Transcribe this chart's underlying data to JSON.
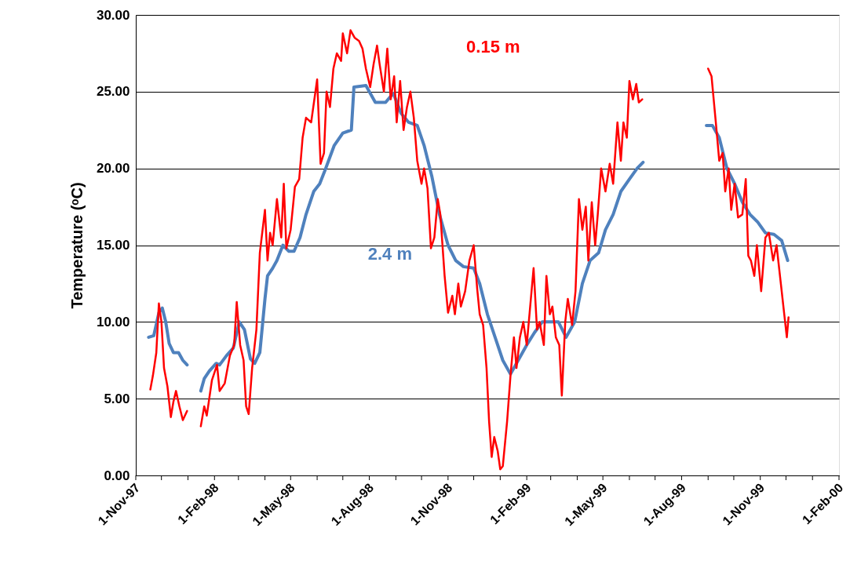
{
  "chart_data": {
    "type": "line",
    "ylabel": "Temperature (ᵒC)",
    "xlim": [
      "1997-11-01",
      "2000-02-01"
    ],
    "xticks": [
      {
        "value": "1997-11-01",
        "label": "1-Nov-97"
      },
      {
        "value": "1997-12-01",
        "label": null
      },
      {
        "value": "1998-01-01",
        "label": null
      },
      {
        "value": "1998-02-01",
        "label": "1-Feb-98"
      },
      {
        "value": "1998-03-01",
        "label": null
      },
      {
        "value": "1998-04-01",
        "label": null
      },
      {
        "value": "1998-05-01",
        "label": "1-May-98"
      },
      {
        "value": "1998-06-01",
        "label": null
      },
      {
        "value": "1998-07-01",
        "label": null
      },
      {
        "value": "1998-08-01",
        "label": "1-Aug-98"
      },
      {
        "value": "1998-09-01",
        "label": null
      },
      {
        "value": "1998-10-01",
        "label": null
      },
      {
        "value": "1998-11-01",
        "label": "1-Nov-98"
      },
      {
        "value": "1998-12-01",
        "label": null
      },
      {
        "value": "1999-01-01",
        "label": null
      },
      {
        "value": "1999-02-01",
        "label": "1-Feb-99"
      },
      {
        "value": "1999-03-01",
        "label": null
      },
      {
        "value": "1999-04-01",
        "label": null
      },
      {
        "value": "1999-05-01",
        "label": "1-May-99"
      },
      {
        "value": "1999-06-01",
        "label": null
      },
      {
        "value": "1999-07-01",
        "label": null
      },
      {
        "value": "1999-08-01",
        "label": "1-Aug-99"
      },
      {
        "value": "1999-09-01",
        "label": null
      },
      {
        "value": "1999-10-01",
        "label": null
      },
      {
        "value": "1999-11-01",
        "label": "1-Nov-99"
      },
      {
        "value": "1999-12-01",
        "label": null
      },
      {
        "value": "2000-01-01",
        "label": null
      },
      {
        "value": "2000-02-01",
        "label": "1-Feb-00"
      }
    ],
    "ylim": [
      0,
      30
    ],
    "yticks": [
      {
        "value": 0,
        "label": "0.00"
      },
      {
        "value": 5,
        "label": "5.00"
      },
      {
        "value": 10,
        "label": "10.00"
      },
      {
        "value": 15,
        "label": "15.00"
      },
      {
        "value": 20,
        "label": "20.00"
      },
      {
        "value": 25,
        "label": "25.00"
      },
      {
        "value": 30,
        "label": "30.00"
      }
    ],
    "grid": "y",
    "legend": false,
    "series": [
      {
        "name": "2.4 m",
        "color": "#4f81bd",
        "x": [
          "1997-11-16",
          "1997-11-22",
          "1997-11-28",
          "1997-12-02",
          "1997-12-06",
          "1997-12-10",
          "1997-12-15",
          "1997-12-21",
          "1997-12-26",
          "1997-12-31",
          "1998-01-08",
          "1998-01-16",
          "1998-01-20",
          "1998-01-26",
          "1998-02-03",
          "1998-02-07",
          "1998-02-15",
          "1998-02-23",
          "1998-03-02",
          "1998-03-08",
          "1998-03-15",
          "1998-03-20",
          "1998-03-26",
          "1998-04-01",
          "1998-04-04",
          "1998-04-10",
          "1998-04-15",
          "1998-04-22",
          "1998-04-29",
          "1998-05-05",
          "1998-05-12",
          "1998-05-19",
          "1998-05-28",
          "1998-06-04",
          "1998-06-11",
          "1998-06-21",
          "1998-07-01",
          "1998-07-11",
          "1998-07-14",
          "1998-07-28",
          "1998-08-08",
          "1998-08-20",
          "1998-08-29",
          "1998-09-07",
          "1998-09-16",
          "1998-09-26",
          "1998-10-04",
          "1998-10-13",
          "1998-10-22",
          "1998-11-01",
          "1998-11-10",
          "1998-11-19",
          "1998-12-01",
          "1998-12-08",
          "1998-12-17",
          "1998-12-26",
          "1999-01-04",
          "1999-01-13",
          "1999-01-22",
          "1999-02-01",
          "1999-02-10",
          "1999-02-19",
          "1999-03-01",
          "1999-03-10",
          "1999-03-19",
          "1999-03-29",
          "1999-04-07",
          "1999-04-16",
          "1999-04-26",
          "1999-05-04",
          "1999-05-13",
          "1999-05-22",
          "1999-06-01",
          "1999-06-10",
          "1999-06-17",
          "1999-07-25",
          "1999-08-30",
          "1999-09-06",
          "1999-09-14",
          "1999-09-23",
          "1999-10-02",
          "1999-10-11",
          "1999-10-20",
          "1999-10-29",
          "1999-11-07",
          "1999-11-17",
          "1999-11-26",
          "1999-12-03"
        ],
        "values": [
          9.0,
          9.1,
          10.6,
          10.9,
          10.0,
          8.6,
          8.0,
          8.0,
          7.5,
          7.2,
          null,
          5.5,
          6.3,
          6.8,
          7.3,
          7.2,
          7.8,
          8.3,
          10.0,
          9.5,
          7.6,
          7.3,
          8.0,
          11.5,
          13.0,
          13.5,
          14.0,
          15.0,
          14.6,
          14.6,
          15.5,
          17.0,
          18.5,
          19.0,
          20.0,
          21.5,
          22.3,
          22.5,
          25.3,
          25.4,
          24.3,
          24.3,
          24.9,
          23.6,
          23.0,
          22.8,
          21.5,
          19.5,
          17.0,
          15.0,
          14.0,
          13.6,
          13.5,
          12.5,
          10.5,
          9.0,
          7.5,
          6.6,
          7.5,
          8.5,
          9.3,
          10.0,
          10.0,
          10.0,
          9.0,
          10.0,
          12.5,
          14.0,
          14.5,
          16.0,
          17.0,
          18.5,
          19.3,
          20.0,
          20.4,
          null,
          22.8,
          22.8,
          22.0,
          20.0,
          19.0,
          17.8,
          17.0,
          16.5,
          15.8,
          15.7,
          15.3,
          14.0
        ]
      },
      {
        "name": "0.15 m",
        "color": "#ff0000",
        "x": [
          "1997-11-18",
          "1997-11-21",
          "1997-11-25",
          "1997-11-28",
          "1997-12-01",
          "1997-12-04",
          "1997-12-08",
          "1997-12-12",
          "1997-12-15",
          "1997-12-18",
          "1997-12-22",
          "1997-12-26",
          "1997-12-31",
          "1998-01-08",
          "1998-01-16",
          "1998-01-20",
          "1998-01-23",
          "1998-01-29",
          "1998-02-04",
          "1998-02-07",
          "1998-02-13",
          "1998-02-19",
          "1998-02-24",
          "1998-02-27",
          "1998-03-03",
          "1998-03-07",
          "1998-03-10",
          "1998-03-13",
          "1998-03-17",
          "1998-03-22",
          "1998-03-26",
          "1998-04-01",
          "1998-04-04",
          "1998-04-07",
          "1998-04-10",
          "1998-04-15",
          "1998-04-20",
          "1998-04-23",
          "1998-04-26",
          "1998-05-01",
          "1998-05-06",
          "1998-05-11",
          "1998-05-15",
          "1998-05-19",
          "1998-05-25",
          "1998-06-01",
          "1998-06-05",
          "1998-06-09",
          "1998-06-12",
          "1998-06-16",
          "1998-06-20",
          "1998-06-24",
          "1998-06-29",
          "1998-07-01",
          "1998-07-06",
          "1998-07-10",
          "1998-07-15",
          "1998-07-20",
          "1998-07-24",
          "1998-07-28",
          "1998-08-02",
          "1998-08-06",
          "1998-08-10",
          "1998-08-13",
          "1998-08-18",
          "1998-08-22",
          "1998-08-26",
          "1998-08-30",
          "1998-09-02",
          "1998-09-06",
          "1998-09-10",
          "1998-09-14",
          "1998-09-18",
          "1998-09-22",
          "1998-09-26",
          "1998-10-01",
          "1998-10-04",
          "1998-10-08",
          "1998-10-12",
          "1998-10-16",
          "1998-10-20",
          "1998-10-23",
          "1998-10-28",
          "1998-11-01",
          "1998-11-06",
          "1998-11-09",
          "1998-11-13",
          "1998-11-16",
          "1998-11-21",
          "1998-11-26",
          "1998-12-01",
          "1998-12-05",
          "1998-12-08",
          "1998-12-12",
          "1998-12-16",
          "1998-12-19",
          "1998-12-22",
          "1998-12-25",
          "1998-12-29",
          "1999-01-01",
          "1999-01-04",
          "1999-01-09",
          "1999-01-13",
          "1999-01-17",
          "1999-01-20",
          "1999-01-24",
          "1999-01-28",
          "1999-02-01",
          "1999-02-05",
          "1999-02-09",
          "1999-02-13",
          "1999-02-16",
          "1999-02-21",
          "1999-02-24",
          "1999-02-28",
          "1999-03-03",
          "1999-03-07",
          "1999-03-11",
          "1999-03-14",
          "1999-03-18",
          "1999-03-21",
          "1999-03-26",
          "1999-03-30",
          "1999-04-03",
          "1999-04-07",
          "1999-04-11",
          "1999-04-14",
          "1999-04-18",
          "1999-04-22",
          "1999-04-25",
          "1999-04-29",
          "1999-05-04",
          "1999-05-09",
          "1999-05-13",
          "1999-05-18",
          "1999-05-22",
          "1999-05-25",
          "1999-05-29",
          "1999-06-01",
          "1999-06-05",
          "1999-06-09",
          "1999-06-12",
          "1999-06-16",
          "1999-07-25",
          "1999-09-01",
          "1999-09-05",
          "1999-09-10",
          "1999-09-14",
          "1999-09-18",
          "1999-09-21",
          "1999-09-25",
          "1999-09-28",
          "1999-10-02",
          "1999-10-06",
          "1999-10-11",
          "1999-10-15",
          "1999-10-18",
          "1999-10-21",
          "1999-10-25",
          "1999-10-28",
          "1999-11-02",
          "1999-11-07",
          "1999-11-11",
          "1999-11-16",
          "1999-11-20",
          "1999-11-25",
          "1999-11-29",
          "1999-12-02",
          "1999-12-04"
        ],
        "values": [
          5.6,
          6.5,
          8.0,
          11.2,
          10.0,
          7.0,
          5.8,
          3.8,
          4.8,
          5.5,
          4.5,
          3.6,
          4.2,
          null,
          3.2,
          4.5,
          3.9,
          6.2,
          7.2,
          5.5,
          6.0,
          7.8,
          8.5,
          11.3,
          8.5,
          7.5,
          4.5,
          4.0,
          7.0,
          9.5,
          14.5,
          17.3,
          14.0,
          15.8,
          15.0,
          18.0,
          15.5,
          19.0,
          14.8,
          16.0,
          18.8,
          19.3,
          22.0,
          23.3,
          23.0,
          25.8,
          20.3,
          21.0,
          25.0,
          24.0,
          26.5,
          27.5,
          27.0,
          28.8,
          27.5,
          29.0,
          28.5,
          28.3,
          27.8,
          26.5,
          25.3,
          26.8,
          28.0,
          26.8,
          25.0,
          27.8,
          24.5,
          26.0,
          23.0,
          25.7,
          22.5,
          24.0,
          25.0,
          23.3,
          20.5,
          19.0,
          20.0,
          18.7,
          14.8,
          15.5,
          18.0,
          17.0,
          13.0,
          10.6,
          11.7,
          10.5,
          12.5,
          11.0,
          12.0,
          14.0,
          15.0,
          12.2,
          10.5,
          9.8,
          7.0,
          3.5,
          1.2,
          2.5,
          1.6,
          0.4,
          0.6,
          3.5,
          6.5,
          9.0,
          7.0,
          9.0,
          10.0,
          8.5,
          11.0,
          13.5,
          9.5,
          10.0,
          8.5,
          13.0,
          10.5,
          11.0,
          9.0,
          8.5,
          5.2,
          10.0,
          11.5,
          9.8,
          12.0,
          18.0,
          16.0,
          17.5,
          14.0,
          17.8,
          15.0,
          17.0,
          20.0,
          18.5,
          20.3,
          19.0,
          23.0,
          20.5,
          23.0,
          22.0,
          25.7,
          24.5,
          25.5,
          24.3,
          24.5,
          null,
          26.5,
          26.0,
          23.0,
          20.5,
          21.0,
          18.5,
          20.0,
          17.3,
          19.0,
          16.8,
          17.0,
          19.3,
          14.3,
          14.0,
          13.0,
          15.0,
          12.0,
          15.5,
          15.8,
          14.0,
          15.0,
          12.5,
          10.5,
          9.0,
          10.3
        ]
      }
    ]
  }
}
